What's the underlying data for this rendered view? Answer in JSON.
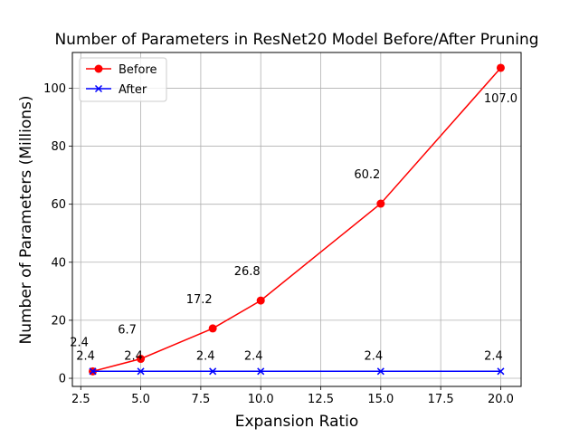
{
  "chart_data": {
    "type": "line",
    "title": "Number of Parameters in ResNet20 Model Before/After Pruning",
    "xlabel": "Expansion Ratio",
    "ylabel": "Number of Parameters (Millions)",
    "xlim": [
      2.15,
      20.85
    ],
    "ylim": [
      -2.8,
      112.3
    ],
    "xticks": [
      2.5,
      5.0,
      7.5,
      10.0,
      12.5,
      15.0,
      17.5,
      20.0
    ],
    "xtick_labels": [
      "2.5",
      "5.0",
      "7.5",
      "10.0",
      "12.5",
      "15.0",
      "17.5",
      "20.0"
    ],
    "yticks": [
      0,
      20,
      40,
      60,
      80,
      100
    ],
    "ytick_labels": [
      "0",
      "20",
      "40",
      "60",
      "80",
      "100"
    ],
    "grid": true,
    "legend_position": "upper-left",
    "x": [
      3,
      5,
      8,
      10,
      15,
      20
    ],
    "series": [
      {
        "name": "Before",
        "color": "#ff0000",
        "marker": "circle",
        "values": [
          2.4,
          6.7,
          17.2,
          26.8,
          60.2,
          107.0
        ],
        "labels": [
          "2.4",
          "6.7",
          "17.2",
          "26.8",
          "60.2",
          "107.0"
        ]
      },
      {
        "name": "After",
        "color": "#0000ff",
        "marker": "x",
        "values": [
          2.4,
          2.4,
          2.4,
          2.4,
          2.4,
          2.4
        ],
        "labels": [
          "2.4",
          "2.4",
          "2.4",
          "2.4",
          "2.4",
          "2.4"
        ]
      }
    ]
  }
}
